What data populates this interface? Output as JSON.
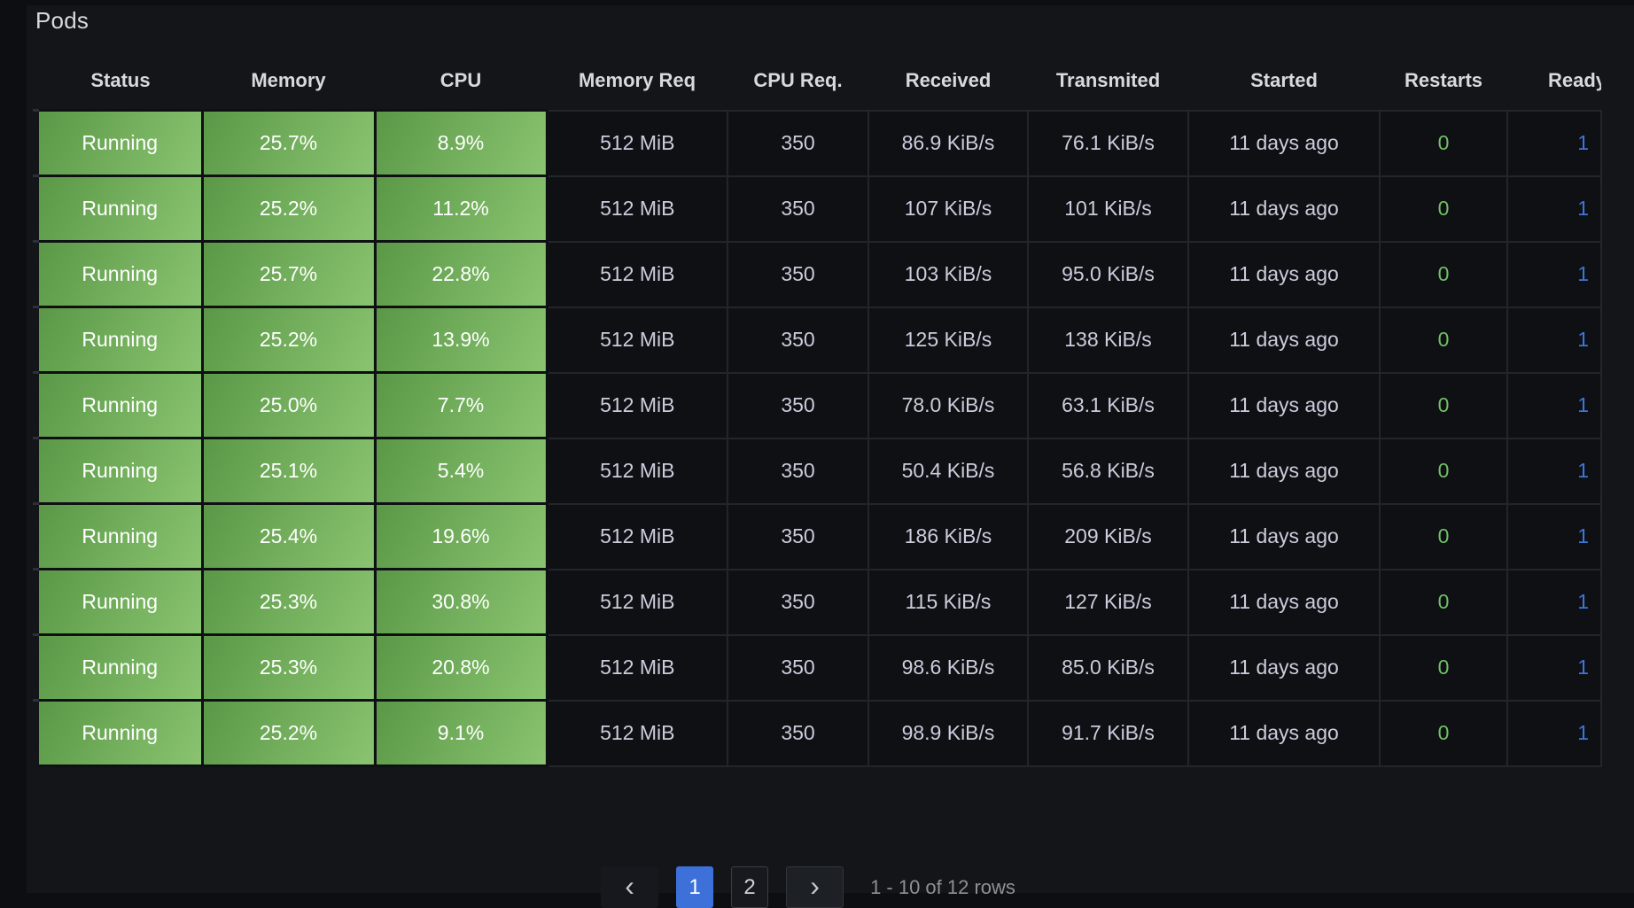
{
  "panel": {
    "title": "Pods"
  },
  "table": {
    "columns": [
      {
        "key": "status",
        "label": "Status",
        "type": "green"
      },
      {
        "key": "memory",
        "label": "Memory",
        "type": "green"
      },
      {
        "key": "cpu",
        "label": "CPU",
        "type": "green"
      },
      {
        "key": "memory_req",
        "label": "Memory Req",
        "type": "dark"
      },
      {
        "key": "cpu_req",
        "label": "CPU Req.",
        "type": "dark"
      },
      {
        "key": "received",
        "label": "Received",
        "type": "dark"
      },
      {
        "key": "transmitted",
        "label": "Transmited",
        "type": "dark"
      },
      {
        "key": "started",
        "label": "Started",
        "type": "dark"
      },
      {
        "key": "restarts",
        "label": "Restarts",
        "type": "restarts"
      },
      {
        "key": "ready",
        "label": "Ready",
        "type": "ready"
      }
    ],
    "rows": [
      {
        "status": "Running",
        "memory": "25.7%",
        "cpu": "8.9%",
        "memory_req": "512 MiB",
        "cpu_req": "350",
        "received": "86.9 KiB/s",
        "transmitted": "76.1 KiB/s",
        "started": "11 days ago",
        "restarts": "0",
        "ready": "1"
      },
      {
        "status": "Running",
        "memory": "25.2%",
        "cpu": "11.2%",
        "memory_req": "512 MiB",
        "cpu_req": "350",
        "received": "107 KiB/s",
        "transmitted": "101 KiB/s",
        "started": "11 days ago",
        "restarts": "0",
        "ready": "1"
      },
      {
        "status": "Running",
        "memory": "25.7%",
        "cpu": "22.8%",
        "memory_req": "512 MiB",
        "cpu_req": "350",
        "received": "103 KiB/s",
        "transmitted": "95.0 KiB/s",
        "started": "11 days ago",
        "restarts": "0",
        "ready": "1"
      },
      {
        "status": "Running",
        "memory": "25.2%",
        "cpu": "13.9%",
        "memory_req": "512 MiB",
        "cpu_req": "350",
        "received": "125 KiB/s",
        "transmitted": "138 KiB/s",
        "started": "11 days ago",
        "restarts": "0",
        "ready": "1"
      },
      {
        "status": "Running",
        "memory": "25.0%",
        "cpu": "7.7%",
        "memory_req": "512 MiB",
        "cpu_req": "350",
        "received": "78.0 KiB/s",
        "transmitted": "63.1 KiB/s",
        "started": "11 days ago",
        "restarts": "0",
        "ready": "1"
      },
      {
        "status": "Running",
        "memory": "25.1%",
        "cpu": "5.4%",
        "memory_req": "512 MiB",
        "cpu_req": "350",
        "received": "50.4 KiB/s",
        "transmitted": "56.8 KiB/s",
        "started": "11 days ago",
        "restarts": "0",
        "ready": "1"
      },
      {
        "status": "Running",
        "memory": "25.4%",
        "cpu": "19.6%",
        "memory_req": "512 MiB",
        "cpu_req": "350",
        "received": "186 KiB/s",
        "transmitted": "209 KiB/s",
        "started": "11 days ago",
        "restarts": "0",
        "ready": "1"
      },
      {
        "status": "Running",
        "memory": "25.3%",
        "cpu": "30.8%",
        "memory_req": "512 MiB",
        "cpu_req": "350",
        "received": "115 KiB/s",
        "transmitted": "127 KiB/s",
        "started": "11 days ago",
        "restarts": "0",
        "ready": "1"
      },
      {
        "status": "Running",
        "memory": "25.3%",
        "cpu": "20.8%",
        "memory_req": "512 MiB",
        "cpu_req": "350",
        "received": "98.6 KiB/s",
        "transmitted": "85.0 KiB/s",
        "started": "11 days ago",
        "restarts": "0",
        "ready": "1"
      },
      {
        "status": "Running",
        "memory": "25.2%",
        "cpu": "9.1%",
        "memory_req": "512 MiB",
        "cpu_req": "350",
        "received": "98.9 KiB/s",
        "transmitted": "91.7 KiB/s",
        "started": "11 days ago",
        "restarts": "0",
        "ready": "1"
      }
    ]
  },
  "pagination": {
    "prev_icon": "‹",
    "next_icon": "›",
    "pages": [
      "1",
      "2"
    ],
    "active_page": "1",
    "summary": "1 - 10 of 12 rows"
  },
  "colors": {
    "restarts_green": "#73bf69",
    "ready_blue": "#3d76d9",
    "active_page_bg": "#3d71d9",
    "cell_gradient_start": "#5a9847",
    "cell_gradient_end": "#8ac470"
  }
}
